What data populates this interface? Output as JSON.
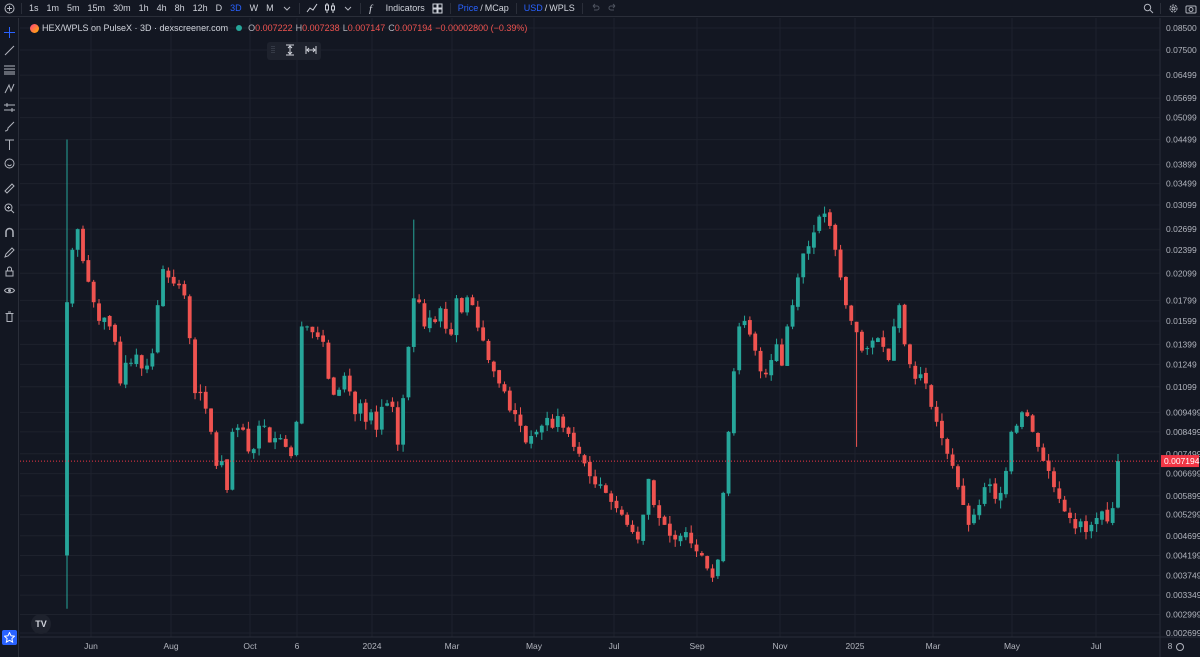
{
  "toolbar": {
    "intervals": [
      {
        "label": "1s",
        "active": false
      },
      {
        "label": "1m",
        "active": false
      },
      {
        "label": "5m",
        "active": false
      },
      {
        "label": "15m",
        "active": false
      },
      {
        "label": "30m",
        "active": false
      },
      {
        "label": "1h",
        "active": false
      },
      {
        "label": "4h",
        "active": false
      },
      {
        "label": "8h",
        "active": false
      },
      {
        "label": "12h",
        "active": false
      },
      {
        "label": "D",
        "active": false
      },
      {
        "label": "3D",
        "active": true
      },
      {
        "label": "W",
        "active": false
      },
      {
        "label": "M",
        "active": false
      }
    ],
    "indicators_label": "Indicators",
    "price_label": "Price",
    "slash": "/",
    "mcap_label": "MCap",
    "usd_label": "USD",
    "wpls_label": "WPLS"
  },
  "legend": {
    "symbol": "HEX/WPLS on PulseX · 3D · dexscreener.com",
    "o_key": "O",
    "o_val": "0.007222",
    "h_key": "H",
    "h_val": "0.007238",
    "l_key": "L",
    "l_val": "0.007147",
    "c_key": "C",
    "c_val": "0.007194",
    "change": "−0.00002800 (−0.39%)"
  },
  "colors": {
    "up": "#26a69a",
    "down": "#ef5350",
    "background": "#131722",
    "grid": "#1e222d",
    "last_price": "#f23645"
  },
  "chart_data": {
    "type": "candlestick",
    "title": "HEX/WPLS on PulseX · 3D · dexscreener.com",
    "y_scale": "log",
    "y_ticks": [
      "0.08500",
      "0.07500",
      "0.06499",
      "0.05699",
      "0.05099",
      "0.04499",
      "0.03899",
      "0.03499",
      "0.03099",
      "0.02699",
      "0.02399",
      "0.02099",
      "0.01799",
      "0.01599",
      "0.01399",
      "0.01249",
      "0.01099",
      "0.009499",
      "0.008499",
      "0.007499",
      "0.006699",
      "0.005899",
      "0.005299",
      "0.004699",
      "0.004199",
      "0.003749",
      "0.003349",
      "0.002999",
      "0.002699"
    ],
    "x_ticks": [
      "Jun",
      "Aug",
      "Oct",
      "6",
      "2024",
      "Mar",
      "May",
      "Jul",
      "Sep",
      "Nov",
      "2025",
      "Mar",
      "May",
      "Jul",
      "8"
    ],
    "last_price": "0.007194",
    "series_close": [
      0.0178,
      0.024,
      0.027,
      0.0225,
      0.02,
      0.0178,
      0.016,
      0.0163,
      0.0155,
      0.0142,
      0.0112,
      0.0126,
      0.0126,
      0.0132,
      0.0122,
      0.0124,
      0.0133,
      0.0175,
      0.0215,
      0.0205,
      0.0198,
      0.0196,
      0.0185,
      0.0145,
      0.0106,
      0.0106,
      0.0097,
      0.0085,
      0.007,
      0.0072,
      0.0061,
      0.0085,
      0.0087,
      0.0086,
      0.0076,
      0.0077,
      0.0088,
      0.0088,
      0.008,
      0.0082,
      0.0082,
      0.0078,
      0.0074,
      0.009,
      0.0155,
      0.0155,
      0.015,
      0.0146,
      0.0142,
      0.0115,
      0.0105,
      0.0108,
      0.0117,
      0.0107,
      0.0094,
      0.01,
      0.009,
      0.0095,
      0.0086,
      0.0098,
      0.01,
      0.0098,
      0.0079,
      0.0103,
      0.0138,
      0.0182,
      0.0178,
      0.0155,
      0.0163,
      0.0159,
      0.0172,
      0.0153,
      0.0148,
      0.0182,
      0.0168,
      0.0183,
      0.0175,
      0.0154,
      0.0143,
      0.0128,
      0.012,
      0.0112,
      0.0107,
      0.0096,
      0.0094,
      0.0088,
      0.008,
      0.0083,
      0.0085,
      0.0088,
      0.0092,
      0.0087,
      0.0093,
      0.0087,
      0.0084,
      0.0078,
      0.0075,
      0.0071,
      0.0066,
      0.0063,
      0.0063,
      0.006,
      0.0057,
      0.0055,
      0.0053,
      0.005,
      0.0048,
      0.0046,
      0.0053,
      0.0065,
      0.0056,
      0.0052,
      0.005,
      0.0047,
      0.0046,
      0.0047,
      0.0048,
      0.0045,
      0.0043,
      0.0042,
      0.0039,
      0.0037,
      0.0041,
      0.006,
      0.0085,
      0.012,
      0.0155,
      0.016,
      0.0148,
      0.0135,
      0.012,
      0.0118,
      0.0128,
      0.014,
      0.0124,
      0.0155,
      0.0175,
      0.0205,
      0.0235,
      0.0245,
      0.0265,
      0.029,
      0.0295,
      0.0275,
      0.024,
      0.0205,
      0.0175,
      0.016,
      0.015,
      0.0135,
      0.0137,
      0.0143,
      0.0145,
      0.0138,
      0.0128,
      0.0155,
      0.0175,
      0.014,
      0.0125,
      0.0115,
      0.0118,
      0.0112,
      0.0098,
      0.009,
      0.0082,
      0.0075,
      0.007,
      0.0062,
      0.0056,
      0.005,
      0.0053,
      0.0056,
      0.0062,
      0.0063,
      0.0058,
      0.006,
      0.0068,
      0.0085,
      0.0088,
      0.0095,
      0.0093,
      0.0085,
      0.0078,
      0.0072,
      0.0068,
      0.0062,
      0.0058,
      0.0054,
      0.0052,
      0.0049,
      0.0051,
      0.0048,
      0.005,
      0.0052,
      0.0054,
      0.0051,
      0.0055,
      0.007194
    ]
  }
}
